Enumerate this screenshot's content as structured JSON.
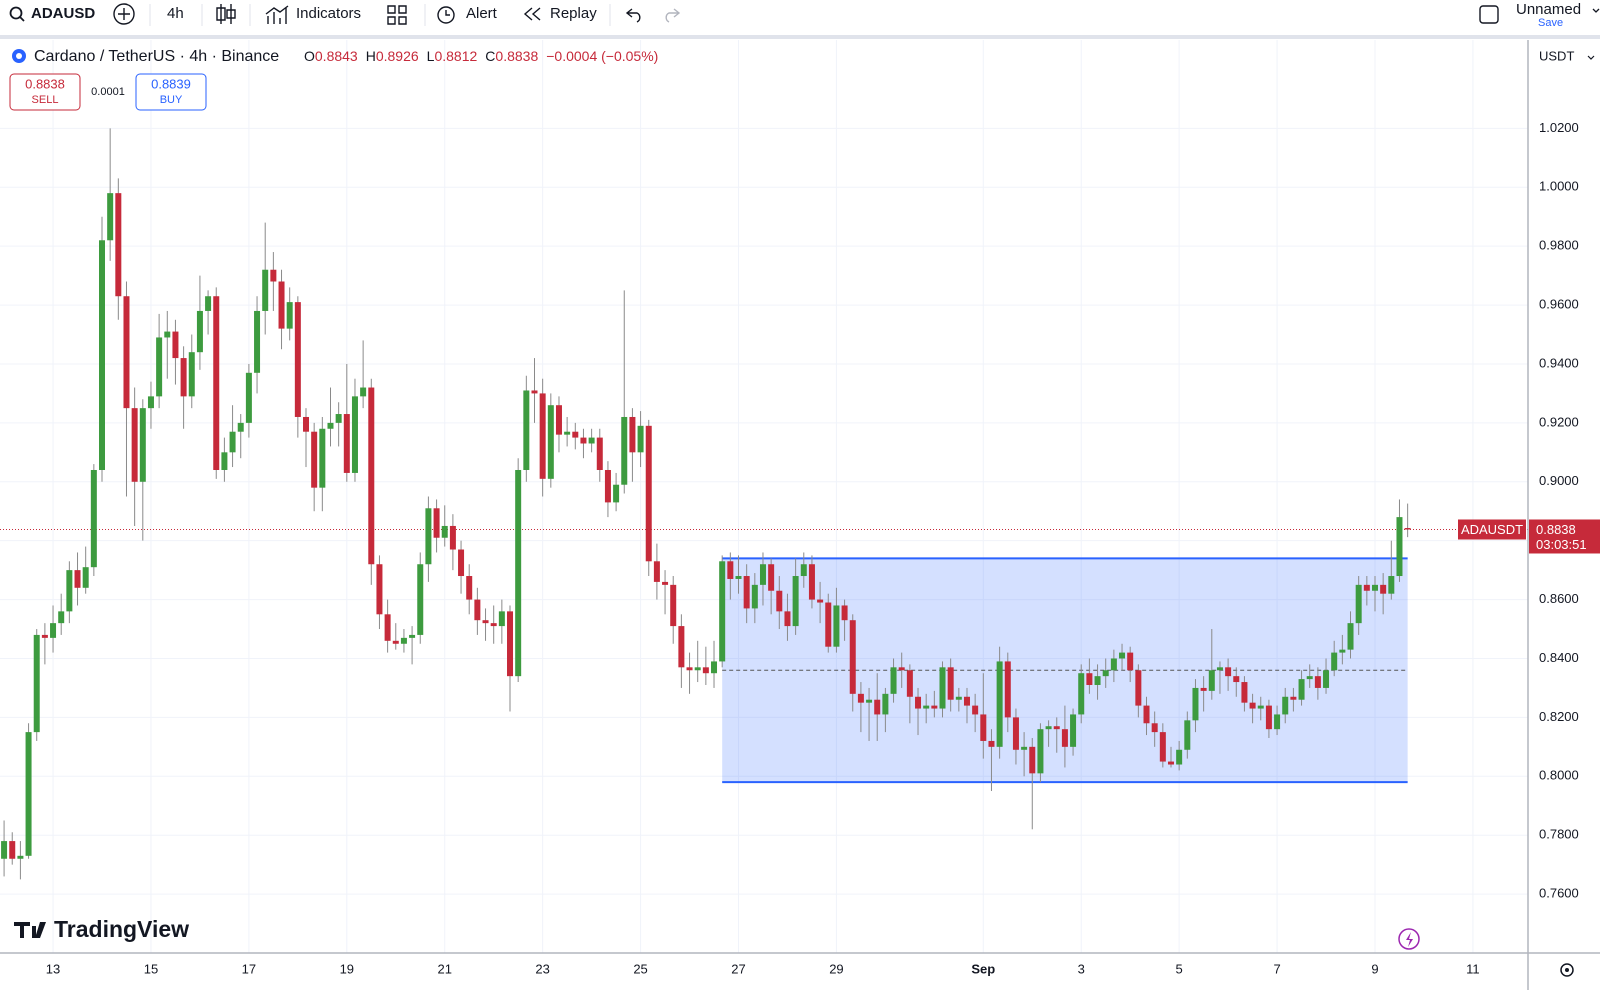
{
  "header": {
    "symbol": "ADAUSD",
    "interval": "4h",
    "indicators": "Indicators",
    "alert": "Alert",
    "replay": "Replay",
    "layout_name": "Unnamed",
    "save": "Save"
  },
  "chart_data": {
    "type": "candlestick",
    "title": "Cardano / TetherUS · 4h · Binance",
    "ohlc_labels": [
      "O",
      "H",
      "L",
      "C"
    ],
    "ohlc_values": [
      0.8843,
      0.8926,
      0.8812,
      0.8838
    ],
    "change": "−0.0004 (−0.05%)",
    "sell": {
      "price": 0.8838,
      "label": "SELL"
    },
    "spread": 0.0001,
    "buy": {
      "price": 0.8839,
      "label": "BUY"
    },
    "currency": "USDT",
    "last_price": {
      "symbol": "ADAUSDT",
      "value": 0.8838,
      "countdown": "03:03:51"
    },
    "up_color": "#3d9b3f",
    "down_color": "#c62a3a",
    "grid": true,
    "ylim": [
      0.74,
      1.05
    ],
    "yticks": [
      {
        "value": 0.76,
        "label": "0.7600"
      },
      {
        "value": 0.78,
        "label": "0.7800"
      },
      {
        "value": 0.8,
        "label": "0.8000"
      },
      {
        "value": 0.82,
        "label": "0.8200"
      },
      {
        "value": 0.84,
        "label": "0.8400"
      },
      {
        "value": 0.86,
        "label": "0.8600"
      },
      {
        "value": 0.88,
        "label": "0.8800"
      },
      {
        "value": 0.9,
        "label": "0.9000"
      },
      {
        "value": 0.92,
        "label": "0.9200"
      },
      {
        "value": 0.94,
        "label": "0.9400"
      },
      {
        "value": 0.96,
        "label": "0.9600"
      },
      {
        "value": 0.98,
        "label": "0.9800"
      },
      {
        "value": 1.0,
        "label": "1.0000"
      },
      {
        "value": 1.02,
        "label": "1.0200"
      }
    ],
    "xlim": [
      -0.5,
      186.75
    ],
    "xticks": [
      {
        "value": 6,
        "label": "13"
      },
      {
        "value": 18,
        "label": "15"
      },
      {
        "value": 30,
        "label": "17"
      },
      {
        "value": 42,
        "label": "19"
      },
      {
        "value": 54,
        "label": "21"
      },
      {
        "value": 66,
        "label": "23"
      },
      {
        "value": 78,
        "label": "25"
      },
      {
        "value": 90,
        "label": "27"
      },
      {
        "value": 102,
        "label": "29"
      },
      {
        "value": 120,
        "label": "Sep"
      },
      {
        "value": 132,
        "label": "3"
      },
      {
        "value": 144,
        "label": "5"
      },
      {
        "value": 156,
        "label": "7"
      },
      {
        "value": 168,
        "label": "9"
      },
      {
        "value": 180,
        "label": "11"
      }
    ],
    "rectangle": {
      "x0": 88,
      "x1": 172,
      "top": 0.874,
      "bottom": 0.798
    },
    "candles": [
      [
        0.772,
        0.785,
        0.766,
        0.778
      ],
      [
        0.778,
        0.781,
        0.77,
        0.772
      ],
      [
        0.772,
        0.778,
        0.765,
        0.773
      ],
      [
        0.773,
        0.818,
        0.772,
        0.815
      ],
      [
        0.815,
        0.85,
        0.812,
        0.848
      ],
      [
        0.848,
        0.852,
        0.838,
        0.847
      ],
      [
        0.847,
        0.858,
        0.842,
        0.852
      ],
      [
        0.852,
        0.862,
        0.848,
        0.856
      ],
      [
        0.856,
        0.873,
        0.852,
        0.87
      ],
      [
        0.87,
        0.876,
        0.858,
        0.864
      ],
      [
        0.864,
        0.878,
        0.862,
        0.871
      ],
      [
        0.871,
        0.906,
        0.868,
        0.904
      ],
      [
        0.904,
        0.99,
        0.9,
        0.982
      ],
      [
        0.982,
        1.02,
        0.975,
        0.998
      ],
      [
        0.998,
        1.003,
        0.955,
        0.963
      ],
      [
        0.963,
        0.968,
        0.895,
        0.925
      ],
      [
        0.925,
        0.932,
        0.885,
        0.9
      ],
      [
        0.9,
        0.928,
        0.88,
        0.925
      ],
      [
        0.925,
        0.934,
        0.918,
        0.929
      ],
      [
        0.929,
        0.957,
        0.925,
        0.949
      ],
      [
        0.949,
        0.958,
        0.935,
        0.951
      ],
      [
        0.951,
        0.955,
        0.933,
        0.942
      ],
      [
        0.942,
        0.946,
        0.918,
        0.929
      ],
      [
        0.929,
        0.95,
        0.925,
        0.944
      ],
      [
        0.944,
        0.97,
        0.938,
        0.958
      ],
      [
        0.958,
        0.965,
        0.95,
        0.963
      ],
      [
        0.963,
        0.966,
        0.901,
        0.904
      ],
      [
        0.904,
        0.915,
        0.9,
        0.91
      ],
      [
        0.91,
        0.926,
        0.905,
        0.917
      ],
      [
        0.917,
        0.923,
        0.908,
        0.92
      ],
      [
        0.92,
        0.94,
        0.915,
        0.937
      ],
      [
        0.937,
        0.963,
        0.93,
        0.958
      ],
      [
        0.958,
        0.988,
        0.95,
        0.972
      ],
      [
        0.972,
        0.978,
        0.958,
        0.968
      ],
      [
        0.968,
        0.972,
        0.945,
        0.952
      ],
      [
        0.952,
        0.966,
        0.948,
        0.961
      ],
      [
        0.961,
        0.963,
        0.915,
        0.922
      ],
      [
        0.922,
        0.925,
        0.905,
        0.917
      ],
      [
        0.917,
        0.92,
        0.89,
        0.898
      ],
      [
        0.898,
        0.922,
        0.89,
        0.918
      ],
      [
        0.918,
        0.932,
        0.912,
        0.92
      ],
      [
        0.92,
        0.927,
        0.912,
        0.923
      ],
      [
        0.923,
        0.94,
        0.9,
        0.903
      ],
      [
        0.903,
        0.935,
        0.9,
        0.929
      ],
      [
        0.929,
        0.948,
        0.925,
        0.932
      ],
      [
        0.932,
        0.935,
        0.865,
        0.872
      ],
      [
        0.872,
        0.875,
        0.85,
        0.855
      ],
      [
        0.855,
        0.86,
        0.842,
        0.846
      ],
      [
        0.846,
        0.852,
        0.843,
        0.845
      ],
      [
        0.845,
        0.85,
        0.842,
        0.847
      ],
      [
        0.847,
        0.851,
        0.838,
        0.848
      ],
      [
        0.848,
        0.876,
        0.845,
        0.872
      ],
      [
        0.872,
        0.895,
        0.866,
        0.891
      ],
      [
        0.891,
        0.894,
        0.876,
        0.881
      ],
      [
        0.881,
        0.892,
        0.878,
        0.885
      ],
      [
        0.885,
        0.889,
        0.87,
        0.877
      ],
      [
        0.877,
        0.88,
        0.862,
        0.868
      ],
      [
        0.868,
        0.872,
        0.855,
        0.86
      ],
      [
        0.86,
        0.864,
        0.848,
        0.853
      ],
      [
        0.853,
        0.857,
        0.846,
        0.852
      ],
      [
        0.852,
        0.858,
        0.845,
        0.851
      ],
      [
        0.851,
        0.86,
        0.845,
        0.856
      ],
      [
        0.856,
        0.858,
        0.822,
        0.834
      ],
      [
        0.834,
        0.908,
        0.832,
        0.904
      ],
      [
        0.904,
        0.936,
        0.9,
        0.931
      ],
      [
        0.931,
        0.942,
        0.92,
        0.93
      ],
      [
        0.93,
        0.935,
        0.895,
        0.901
      ],
      [
        0.901,
        0.93,
        0.898,
        0.926
      ],
      [
        0.926,
        0.929,
        0.91,
        0.916
      ],
      [
        0.916,
        0.922,
        0.912,
        0.917
      ],
      [
        0.917,
        0.92,
        0.911,
        0.915
      ],
      [
        0.915,
        0.918,
        0.908,
        0.913
      ],
      [
        0.913,
        0.918,
        0.91,
        0.915
      ],
      [
        0.915,
        0.918,
        0.9,
        0.904
      ],
      [
        0.904,
        0.907,
        0.888,
        0.893
      ],
      [
        0.893,
        0.903,
        0.89,
        0.899
      ],
      [
        0.899,
        0.965,
        0.896,
        0.922
      ],
      [
        0.922,
        0.925,
        0.9,
        0.91
      ],
      [
        0.91,
        0.924,
        0.905,
        0.919
      ],
      [
        0.919,
        0.921,
        0.868,
        0.873
      ],
      [
        0.873,
        0.879,
        0.86,
        0.866
      ],
      [
        0.866,
        0.87,
        0.855,
        0.865
      ],
      [
        0.865,
        0.868,
        0.845,
        0.851
      ],
      [
        0.851,
        0.855,
        0.83,
        0.837
      ],
      [
        0.837,
        0.842,
        0.828,
        0.836
      ],
      [
        0.836,
        0.846,
        0.832,
        0.837
      ],
      [
        0.837,
        0.844,
        0.831,
        0.835
      ],
      [
        0.835,
        0.846,
        0.83,
        0.839
      ],
      [
        0.839,
        0.875,
        0.837,
        0.873
      ],
      [
        0.873,
        0.876,
        0.86,
        0.867
      ],
      [
        0.867,
        0.875,
        0.862,
        0.868
      ],
      [
        0.868,
        0.872,
        0.852,
        0.857
      ],
      [
        0.857,
        0.869,
        0.852,
        0.865
      ],
      [
        0.865,
        0.876,
        0.858,
        0.872
      ],
      [
        0.872,
        0.874,
        0.855,
        0.863
      ],
      [
        0.863,
        0.868,
        0.85,
        0.856
      ],
      [
        0.856,
        0.862,
        0.846,
        0.851
      ],
      [
        0.851,
        0.874,
        0.848,
        0.868
      ],
      [
        0.868,
        0.876,
        0.864,
        0.872
      ],
      [
        0.872,
        0.875,
        0.857,
        0.86
      ],
      [
        0.86,
        0.866,
        0.852,
        0.859
      ],
      [
        0.859,
        0.862,
        0.842,
        0.844
      ],
      [
        0.844,
        0.864,
        0.842,
        0.858
      ],
      [
        0.858,
        0.86,
        0.846,
        0.853
      ],
      [
        0.853,
        0.855,
        0.822,
        0.828
      ],
      [
        0.828,
        0.832,
        0.815,
        0.825
      ],
      [
        0.825,
        0.83,
        0.812,
        0.826
      ],
      [
        0.826,
        0.835,
        0.812,
        0.821
      ],
      [
        0.821,
        0.83,
        0.815,
        0.828
      ],
      [
        0.828,
        0.84,
        0.825,
        0.837
      ],
      [
        0.837,
        0.842,
        0.83,
        0.836
      ],
      [
        0.836,
        0.838,
        0.818,
        0.827
      ],
      [
        0.827,
        0.83,
        0.814,
        0.823
      ],
      [
        0.823,
        0.828,
        0.818,
        0.824
      ],
      [
        0.824,
        0.829,
        0.82,
        0.823
      ],
      [
        0.823,
        0.839,
        0.82,
        0.837
      ],
      [
        0.837,
        0.84,
        0.822,
        0.826
      ],
      [
        0.826,
        0.83,
        0.822,
        0.827
      ],
      [
        0.827,
        0.83,
        0.818,
        0.824
      ],
      [
        0.824,
        0.828,
        0.815,
        0.821
      ],
      [
        0.821,
        0.835,
        0.806,
        0.812
      ],
      [
        0.812,
        0.816,
        0.795,
        0.81
      ],
      [
        0.81,
        0.844,
        0.806,
        0.839
      ],
      [
        0.839,
        0.842,
        0.815,
        0.82
      ],
      [
        0.82,
        0.823,
        0.804,
        0.809
      ],
      [
        0.809,
        0.815,
        0.8,
        0.81
      ],
      [
        0.81,
        0.813,
        0.782,
        0.801
      ],
      [
        0.801,
        0.818,
        0.798,
        0.816
      ],
      [
        0.816,
        0.819,
        0.81,
        0.817
      ],
      [
        0.817,
        0.82,
        0.808,
        0.816
      ],
      [
        0.816,
        0.824,
        0.803,
        0.81
      ],
      [
        0.81,
        0.823,
        0.807,
        0.821
      ],
      [
        0.821,
        0.838,
        0.818,
        0.835
      ],
      [
        0.835,
        0.84,
        0.828,
        0.831
      ],
      [
        0.831,
        0.838,
        0.826,
        0.834
      ],
      [
        0.834,
        0.84,
        0.83,
        0.836
      ],
      [
        0.836,
        0.843,
        0.832,
        0.84
      ],
      [
        0.84,
        0.845,
        0.836,
        0.842
      ],
      [
        0.842,
        0.844,
        0.832,
        0.836
      ],
      [
        0.836,
        0.838,
        0.82,
        0.824
      ],
      [
        0.824,
        0.827,
        0.814,
        0.818
      ],
      [
        0.818,
        0.822,
        0.81,
        0.815
      ],
      [
        0.815,
        0.818,
        0.803,
        0.805
      ],
      [
        0.805,
        0.81,
        0.803,
        0.804
      ],
      [
        0.804,
        0.812,
        0.802,
        0.809
      ],
      [
        0.809,
        0.822,
        0.806,
        0.819
      ],
      [
        0.819,
        0.833,
        0.815,
        0.83
      ],
      [
        0.83,
        0.834,
        0.822,
        0.829
      ],
      [
        0.829,
        0.85,
        0.826,
        0.836
      ],
      [
        0.836,
        0.839,
        0.828,
        0.837
      ],
      [
        0.837,
        0.84,
        0.829,
        0.834
      ],
      [
        0.834,
        0.837,
        0.827,
        0.832
      ],
      [
        0.832,
        0.834,
        0.822,
        0.825
      ],
      [
        0.825,
        0.828,
        0.818,
        0.823
      ],
      [
        0.823,
        0.827,
        0.819,
        0.824
      ],
      [
        0.824,
        0.826,
        0.813,
        0.816
      ],
      [
        0.816,
        0.824,
        0.814,
        0.821
      ],
      [
        0.821,
        0.83,
        0.818,
        0.827
      ],
      [
        0.827,
        0.83,
        0.822,
        0.826
      ],
      [
        0.826,
        0.836,
        0.824,
        0.833
      ],
      [
        0.833,
        0.838,
        0.83,
        0.834
      ],
      [
        0.834,
        0.837,
        0.826,
        0.83
      ],
      [
        0.83,
        0.84,
        0.828,
        0.836
      ],
      [
        0.836,
        0.846,
        0.834,
        0.842
      ],
      [
        0.842,
        0.848,
        0.838,
        0.843
      ],
      [
        0.843,
        0.856,
        0.84,
        0.852
      ],
      [
        0.852,
        0.868,
        0.848,
        0.865
      ],
      [
        0.865,
        0.868,
        0.858,
        0.863
      ],
      [
        0.863,
        0.868,
        0.856,
        0.865
      ],
      [
        0.865,
        0.869,
        0.855,
        0.862
      ],
      [
        0.862,
        0.88,
        0.86,
        0.868
      ],
      [
        0.868,
        0.894,
        0.866,
        0.888
      ],
      [
        0.8843,
        0.8926,
        0.8812,
        0.8838
      ]
    ],
    "watermark": "TradingView"
  }
}
